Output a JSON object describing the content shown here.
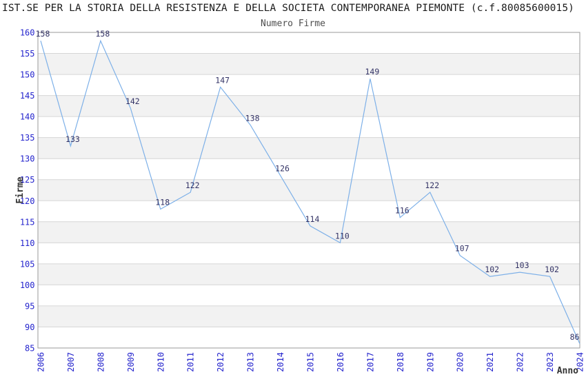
{
  "chart_data": {
    "type": "line",
    "title": "IST.SE PER LA STORIA DELLA RESISTENZA E DELLA SOCIETA CONTEMPORANEA PIEMONTE (c.f.80085600015)",
    "subtitle": "Numero Firme",
    "xlabel": "Anno",
    "ylabel": "Firme",
    "categories": [
      "2006",
      "2007",
      "2008",
      "2009",
      "2010",
      "2011",
      "2012",
      "2013",
      "2014",
      "2015",
      "2016",
      "2017",
      "2018",
      "2019",
      "2020",
      "2021",
      "2022",
      "2023",
      "2024"
    ],
    "values": [
      158,
      133,
      158,
      142,
      118,
      122,
      147,
      138,
      126,
      114,
      110,
      149,
      116,
      122,
      107,
      102,
      103,
      102,
      86
    ],
    "ylim": [
      85,
      160
    ],
    "ytick_step": 5,
    "grid": true,
    "legend": "none",
    "colors": {
      "line": "#7db0e8",
      "data_label": "#333366",
      "tick_label": "#2424cd",
      "band_light": "#ffffff",
      "band_dark": "#f2f2f2",
      "gridline": "#d6d6d6",
      "plot_border": "#9a9a9a",
      "title": "#1a1a1a",
      "subtitle": "#4d4d4d",
      "axis_title": "#333333"
    }
  }
}
